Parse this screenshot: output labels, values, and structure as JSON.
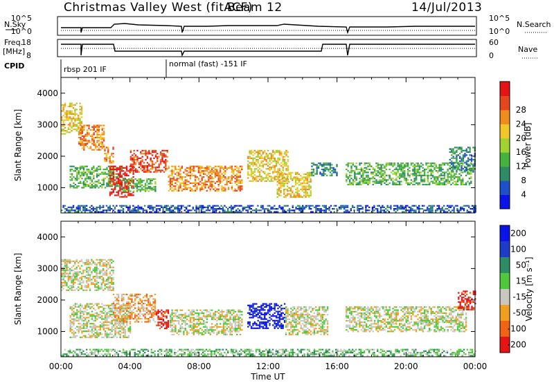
{
  "header": {
    "title": "Christmas Valley West (fitACF)",
    "beam": "Beam 12",
    "date": "14/Jul/2013"
  },
  "top_labels": {
    "nsky": "N.Sky",
    "nsearch": "N.Search",
    "freq": "Freq.",
    "freq_unit": "[MHz]",
    "nave": "Nave",
    "cpid": "CPID",
    "ns_ticks_top": "10^5",
    "ns_ticks_bottom": "10^0",
    "freq_ticks": [
      "18",
      "8"
    ],
    "nave_ticks": [
      "60",
      "0"
    ]
  },
  "cpid_segments": [
    {
      "label": "rbsp 201 IF",
      "start_hour": 0.0
    },
    {
      "label": "normal (fast) -151 IF",
      "start_hour": 6.0
    }
  ],
  "chart_data": [
    {
      "type": "heatmap",
      "name": "power",
      "xlabel": "",
      "ylabel": "Slant Range [km]",
      "xlim": [
        0,
        24
      ],
      "ylim": [
        200,
        4500
      ],
      "yticks": [
        "1000",
        "2000",
        "3000",
        "4000"
      ],
      "colorbar": {
        "label": "Power [dB]",
        "ticks": [
          "4",
          "8",
          "12",
          "16",
          "20",
          "24",
          "28"
        ],
        "colors": [
          "#0a14e6",
          "#1e50c8",
          "#2e8c64",
          "#46b43c",
          "#a0d232",
          "#f0c828",
          "#f08c1e",
          "#e6461e",
          "#e61414"
        ]
      },
      "bands": [
        {
          "t0": 0.0,
          "t1": 1.2,
          "r0": 2700,
          "r1": 3700,
          "level": 5
        },
        {
          "t0": 1.0,
          "t1": 2.5,
          "r0": 2200,
          "r1": 3000,
          "level": 6
        },
        {
          "t0": 2.5,
          "t1": 3.0,
          "r0": 1800,
          "r1": 2300,
          "level": 6
        },
        {
          "t0": 0.5,
          "t1": 3.5,
          "r0": 1000,
          "r1": 1700,
          "level": 3
        },
        {
          "t0": 2.8,
          "t1": 4.2,
          "r0": 700,
          "r1": 1700,
          "level": 8
        },
        {
          "t0": 4.0,
          "t1": 6.2,
          "r0": 1500,
          "r1": 2200,
          "level": 7
        },
        {
          "t0": 3.5,
          "t1": 5.5,
          "r0": 900,
          "r1": 1300,
          "level": 3
        },
        {
          "t0": 6.2,
          "t1": 10.5,
          "r0": 900,
          "r1": 1700,
          "level": 6
        },
        {
          "t0": 10.8,
          "t1": 13.2,
          "r0": 1200,
          "r1": 2200,
          "level": 5
        },
        {
          "t0": 12.5,
          "t1": 14.5,
          "r0": 700,
          "r1": 1500,
          "level": 5
        },
        {
          "t0": 14.5,
          "t1": 16.0,
          "r0": 1400,
          "r1": 1800,
          "level": 2
        },
        {
          "t0": 16.5,
          "t1": 23.8,
          "r0": 1100,
          "r1": 1800,
          "level": 3
        },
        {
          "t0": 22.5,
          "t1": 24.0,
          "r0": 1500,
          "r1": 2300,
          "level": 2
        },
        {
          "t0": 0.0,
          "t1": 24.0,
          "r0": 250,
          "r1": 450,
          "level": 1
        }
      ]
    },
    {
      "type": "heatmap",
      "name": "velocity",
      "xlabel": "Time UT",
      "ylabel": "Slant Range [km]",
      "xlim": [
        0,
        24
      ],
      "ylim": [
        200,
        4500
      ],
      "xticks": [
        "00:00",
        "04:00",
        "08:00",
        "12:00",
        "16:00",
        "20:00",
        "00:00"
      ],
      "yticks": [
        "1000",
        "2000",
        "3000",
        "4000"
      ],
      "colorbar": {
        "label": "Velocity [m s⁻¹]",
        "ticks": [
          "200",
          "100",
          "50",
          "15",
          "-15",
          "-50",
          "-100",
          "-200"
        ],
        "colors": [
          "#0a14e6",
          "#1e3cc8",
          "#2e8c64",
          "#50c83c",
          "#c8c8c0",
          "#f0a01e",
          "#f06414",
          "#e61414"
        ]
      },
      "bands": [
        {
          "t0": 0.0,
          "t1": 3.0,
          "r0": 2300,
          "r1": 3300,
          "level": 4
        },
        {
          "t0": 0.5,
          "t1": 4.0,
          "r0": 800,
          "r1": 1900,
          "level": 4
        },
        {
          "t0": 3.0,
          "t1": 5.5,
          "r0": 1300,
          "r1": 2200,
          "level": 5
        },
        {
          "t0": 5.5,
          "t1": 6.2,
          "r0": 1100,
          "r1": 1700,
          "level": 7
        },
        {
          "t0": 6.3,
          "t1": 10.5,
          "r0": 900,
          "r1": 1700,
          "level": 4
        },
        {
          "t0": 10.8,
          "t1": 13.0,
          "r0": 1100,
          "r1": 1900,
          "level": 0
        },
        {
          "t0": 13.0,
          "t1": 15.5,
          "r0": 900,
          "r1": 1800,
          "level": 4
        },
        {
          "t0": 16.5,
          "t1": 23.5,
          "r0": 1000,
          "r1": 1800,
          "level": 4
        },
        {
          "t0": 23.0,
          "t1": 24.0,
          "r0": 1700,
          "r1": 2300,
          "level": 7
        },
        {
          "t0": 0.0,
          "t1": 24.0,
          "r0": 220,
          "r1": 450,
          "level": 3
        }
      ]
    }
  ]
}
